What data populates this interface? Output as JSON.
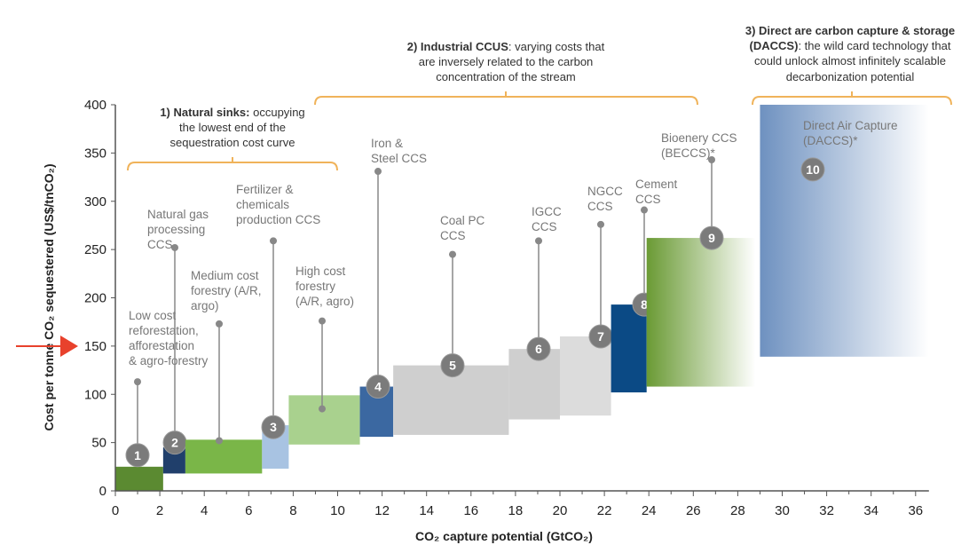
{
  "chart_data": {
    "type": "bar",
    "subtype": "marginal-cost-curve",
    "xlabel": "CO₂ capture potential (GtCO₂)",
    "ylabel": "Cost per tonne CO₂ sequestered (US$/tnCO₂)",
    "xlim": [
      0,
      36
    ],
    "ylim": [
      0,
      400
    ],
    "xticks": [
      "0",
      "2",
      "4",
      "6",
      "8",
      "10",
      "12",
      "14",
      "16",
      "18",
      "20",
      "22",
      "24",
      "26",
      "28",
      "30",
      "32",
      "34",
      "36"
    ],
    "yticks": [
      "0",
      "50",
      "100",
      "150",
      "200",
      "250",
      "300",
      "350",
      "400"
    ],
    "grid": false,
    "highlight_arrow_y": 150,
    "highlight_color": "#e8412c",
    "bracket_color": "#f0b35a",
    "groups": [
      {
        "bold": "1) Natural sinks:",
        "text": [
          "occupying",
          "the lowest end of the",
          "sequestration cost curve"
        ]
      },
      {
        "bold": "2) Industrial CCUS",
        "text": [
          ": varying costs that",
          "are inversely related to the carbon",
          "concentration of the stream"
        ]
      },
      {
        "bold": "3) Direct are carbon capture & storage",
        "bold2": "(DACCS)",
        "text": [
          ": the wild card technology that",
          "could unlock almost infinitely scalable",
          "decarbonization potential"
        ]
      }
    ],
    "blocks": [
      {
        "id": "1",
        "label": [
          "Low cost",
          "reforestation,",
          "afforestation",
          "& agro-forestry"
        ],
        "x0": 0,
        "x1": 2.15,
        "ymin": 0,
        "ymax": 25,
        "circle_y": 37,
        "dot_top": 113,
        "color": "#5b8a31"
      },
      {
        "id": "2",
        "label": [
          "Natural gas",
          "processing",
          "CCS"
        ],
        "x0": 2.15,
        "x1": 3.15,
        "ymin": 18,
        "ymax": 45,
        "circle_y": 50,
        "dot_top": 252,
        "color": "#203f6b"
      },
      {
        "id": "",
        "label": [
          "Medium cost",
          "forestry (A/R,",
          "argo)"
        ],
        "x0": 3.15,
        "x1": 6.6,
        "ymin": 18,
        "ymax": 53,
        "dot_bottom": 52,
        "dot_top": 173,
        "color": "#7ab648"
      },
      {
        "id": "3",
        "label": [
          "Fertilizer &",
          "chemicals",
          "production CCS"
        ],
        "x0": 6.6,
        "x1": 7.8,
        "ymin": 23,
        "ymax": 68,
        "circle_y": 66,
        "dot_top": 259,
        "color": "#a8c3e2"
      },
      {
        "id": "",
        "label": [
          "High cost",
          "forestry",
          "(A/R, agro)"
        ],
        "x0": 7.8,
        "x1": 11,
        "ymin": 48,
        "ymax": 99,
        "dot_bottom": 85,
        "dot_top": 176,
        "color": "#a9d18e"
      },
      {
        "id": "4",
        "label": [
          "Iron &",
          "Steel CCS"
        ],
        "x0": 11,
        "x1": 12.5,
        "ymin": 56,
        "ymax": 108,
        "circle_y": 108,
        "dot_top": 331,
        "color": "#3b68a1"
      },
      {
        "id": "5",
        "label": [
          "Coal PC",
          "CCS"
        ],
        "x0": 12.5,
        "x1": 17.7,
        "ymin": 58,
        "ymax": 130,
        "circle_y": 130,
        "dot_top": 245,
        "color": "#cfcfcf"
      },
      {
        "id": "6",
        "label": [
          "IGCC",
          "CCS"
        ],
        "x0": 17.7,
        "x1": 20,
        "ymin": 74,
        "ymax": 147,
        "circle_y": 147,
        "dot_top": 259,
        "color": "#cfcfcf"
      },
      {
        "id": "7",
        "label": [
          "NGCC",
          "CCS"
        ],
        "x0": 20,
        "x1": 22.3,
        "ymin": 78,
        "ymax": 160,
        "circle_y": 160,
        "dot_top": 276,
        "color": "#dcdcdc"
      },
      {
        "id": "8",
        "label": [
          "Cement",
          "CCS"
        ],
        "x0": 22.3,
        "x1": 23.9,
        "ymin": 102,
        "ymax": 193,
        "circle_y": 193,
        "dot_top": 291,
        "color": "#0b4a85"
      },
      {
        "id": "9",
        "label": [
          "Bioenery CCS",
          "(BECCS)*"
        ],
        "x0": 23.9,
        "x1": 28.8,
        "ymin": 108,
        "ymax": 262,
        "circle_y": 262,
        "dot_top": 343,
        "color": "#6a9a34",
        "gradient": true
      },
      {
        "id": "10",
        "label": [
          "Direct Air Capture",
          "(DACCS)*"
        ],
        "x0": 29,
        "x1": 36.6,
        "ymin": 139,
        "ymax": 400,
        "circle_y": 333,
        "color": "#6e91c0",
        "gradient": true
      }
    ]
  }
}
